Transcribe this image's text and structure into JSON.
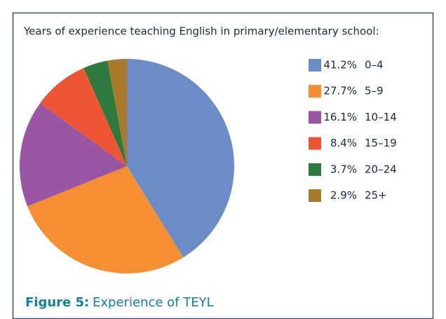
{
  "chart_data": {
    "type": "pie",
    "title": "Years of experience teaching English in primary/elementary school:",
    "categories": [
      "0–4",
      "5–9",
      "10–14",
      "15–19",
      "20–24",
      "25+"
    ],
    "values": [
      41.2,
      27.7,
      16.1,
      8.4,
      3.7,
      2.9
    ],
    "value_labels": [
      "41.2%",
      "27.7%",
      "16.1%",
      "8.4%",
      "3.7%",
      "2.9%"
    ],
    "colors": [
      "#6b8cc7",
      "#f68e33",
      "#9a55a3",
      "#ee5535",
      "#2e7a3e",
      "#a87a2c"
    ],
    "legend": "right"
  },
  "caption": {
    "label": "Figure 5:",
    "text": "Experience of TEYL"
  }
}
